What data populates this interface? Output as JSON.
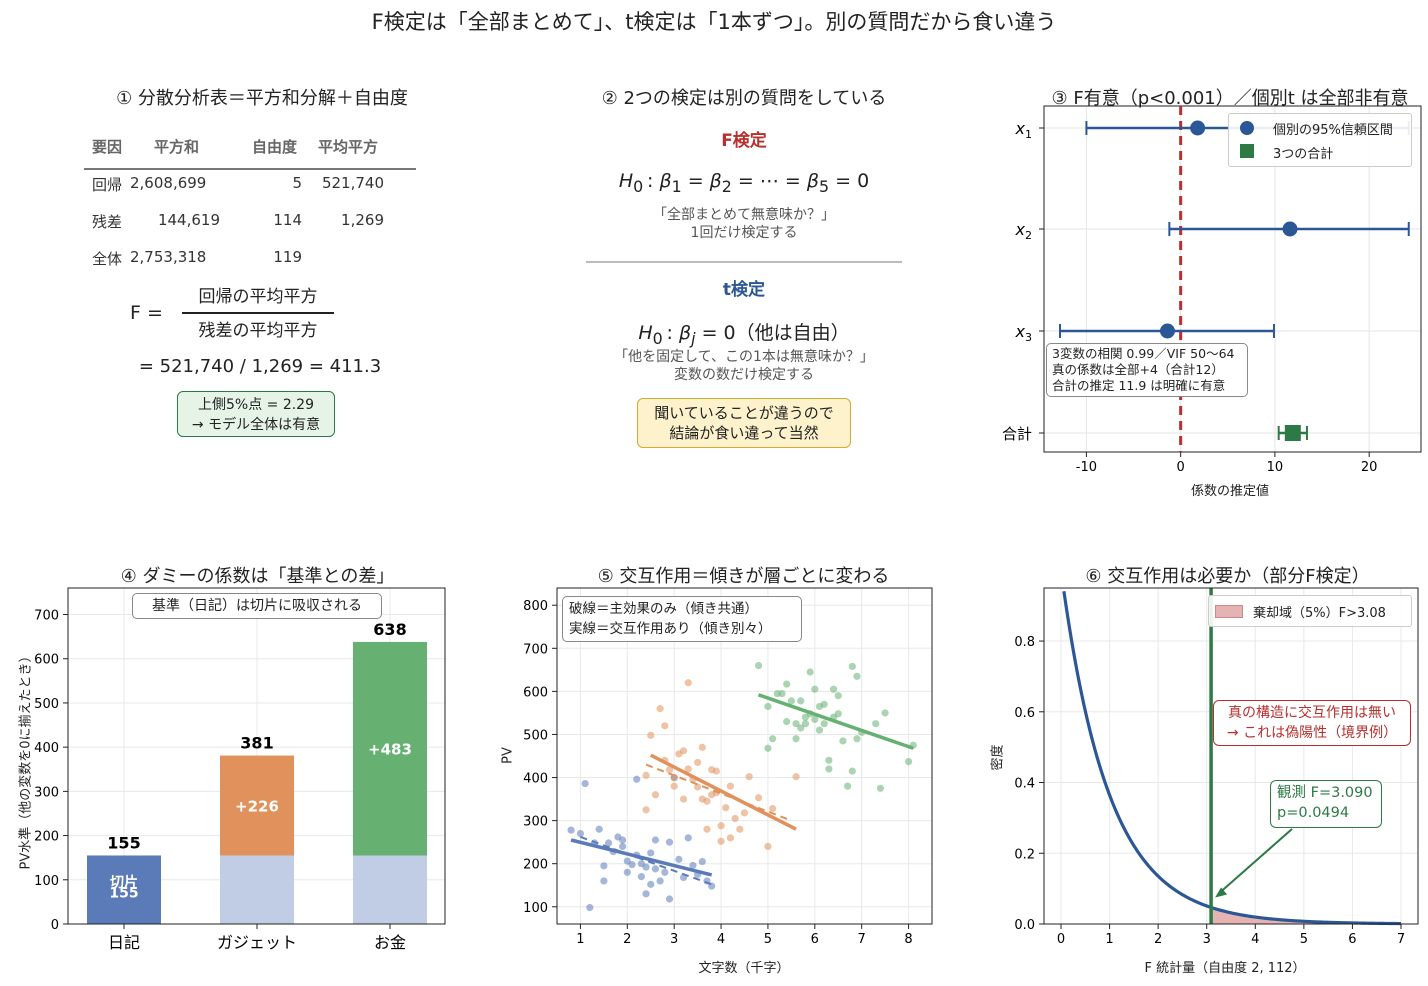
{
  "main_title": "F検定は「全部まとめて」、t検定は「1本ずつ」。別の質問だから食い違う",
  "panel1": {
    "title": "① 分散分析表＝平方和分解＋自由度",
    "headers": [
      "要因",
      "平方和",
      "自由度",
      "平均平方"
    ],
    "rows": [
      {
        "factor": "回帰",
        "ss": "2,608,699",
        "df": "5",
        "ms": "521,740"
      },
      {
        "factor": "残差",
        "ss": "144,619",
        "df": "114",
        "ms": "1,269"
      },
      {
        "factor": "全体",
        "ss": "2,753,318",
        "df": "119",
        "ms": ""
      }
    ],
    "f_label": "F =",
    "numerator": "回帰の平均平方",
    "denominator": "残差の平均平方",
    "calc": "= 521,740 / 1,269 = 411.3",
    "box_line1": "上側5%点 = 2.29",
    "box_line2": "→ モデル全体は有意"
  },
  "panel2": {
    "title": "② 2つの検定は別の質問をしている",
    "f_head": "F検定",
    "f_note1": "「全部まとめて無意味か？」",
    "f_note2": "1回だけ検定する",
    "t_head": "t検定",
    "t_paren": "（他は自由）",
    "t_note1": "「他を固定して、この1本は無意味か？」",
    "t_note2": "変数の数だけ検定する",
    "box_line1": "聞いていることが違うので",
    "box_line2": "結論が食い違って当然",
    "colors": {
      "f": "#b5302f",
      "t": "#2b5797"
    }
  },
  "panel3": {
    "title": "③ F有意（p<0.001）／個別t は全部非有意",
    "xlabel": "係数の推定値",
    "legend": [
      "個別の95%信頼区間",
      "3つの合計"
    ],
    "annotation": [
      "3変数の相関 0.99／VIF 50〜64",
      "真の係数は全部+4（合計12）",
      "合計の推定 11.9 は明確に有意"
    ],
    "total_label": "合計",
    "colors": {
      "ci": "#2b5797",
      "total": "#2d7a46",
      "zero": "#b5302f"
    }
  },
  "panel4": {
    "title": "④ ダミーの係数は「基準との差」",
    "ylabel": "PV水準（他の変数を0に揃えたとき）",
    "box": "基準（日記）は切片に吸収される",
    "intercept_label": "切片",
    "colors": {
      "base": "#5b7bb8",
      "base_light": "#c0cde4",
      "gadget": "#e0915c",
      "money": "#66b072"
    }
  },
  "panel5": {
    "title": "⑤ 交互作用＝傾きが層ごとに変わる",
    "xlabel": "文字数（千字）",
    "ylabel": "PV",
    "legend_line1": "破線＝主効果のみ（傾き共通）",
    "legend_line2": "実線＝交互作用あり（傾き別々）"
  },
  "panel6": {
    "title": "⑥ 交互作用は必要か（部分F検定）",
    "xlabel": "F 統計量（自由度 2, 112）",
    "ylabel": "密度",
    "legend": "棄却域（5%）F>3.08",
    "red_note1": "真の構造に交互作用は無い",
    "red_note2": "→ これは偽陽性（境界例）",
    "obs_line1": "観測 F=3.090",
    "obs_line2": "p=0.0494"
  },
  "chart_data": [
    {
      "type": "table",
      "title": "① 分散分析表＝平方和分解＋自由度",
      "columns": [
        "要因",
        "平方和",
        "自由度",
        "平均平方"
      ],
      "rows": [
        [
          "回帰",
          2608699,
          5,
          521740
        ],
        [
          "残差",
          144619,
          114,
          1269
        ],
        [
          "全体",
          2753318,
          119,
          null
        ]
      ],
      "F": 411.3,
      "critical_5pct": 2.29
    },
    {
      "type": "scatter",
      "title": "③ F有意（p<0.001）／個別t は全部非有意",
      "xlabel": "係数の推定値",
      "categories": [
        "x1",
        "x2",
        "x3",
        "合計"
      ],
      "estimates": [
        1.8,
        11.6,
        -1.4,
        11.9
      ],
      "ci_low": [
        -10.0,
        -1.2,
        -12.8,
        10.4
      ],
      "ci_high": [
        24.2,
        24.2,
        9.9,
        13.4
      ],
      "xlim": [
        -14.5,
        25.5
      ],
      "xticks": [
        -10,
        0,
        10,
        20
      ],
      "reference_line": 0,
      "legend_position": "top-right"
    },
    {
      "type": "bar",
      "title": "④ ダミーの係数は「基準との差」",
      "ylabel": "PV水準（他の変数を0に揃えたとき）",
      "categories": [
        "日記",
        "ガジェット",
        "お金"
      ],
      "totals": [
        155,
        381,
        638
      ],
      "series": [
        {
          "name": "切片",
          "values": [
            155,
            155,
            155
          ]
        },
        {
          "name": "差",
          "values": [
            0,
            226,
            483
          ]
        }
      ],
      "increment_labels": [
        "",
        "+226",
        "+483"
      ],
      "ylim": [
        0,
        760
      ],
      "yticks": [
        0,
        100,
        200,
        300,
        400,
        500,
        600,
        700
      ]
    },
    {
      "type": "scatter",
      "title": "⑤ 交互作用＝傾きが層ごとに変わる",
      "xlabel": "文字数（千字）",
      "ylabel": "PV",
      "xlim": [
        0.5,
        8.5
      ],
      "ylim": [
        60,
        840
      ],
      "xticks": [
        1,
        2,
        3,
        4,
        5,
        6,
        7,
        8
      ],
      "yticks": [
        100,
        200,
        300,
        400,
        500,
        600,
        700,
        800
      ],
      "series": [
        {
          "color": "#5b7bb8",
          "points": [
            [
              0.8,
              278
            ],
            [
              1.0,
              270
            ],
            [
              1.1,
              386
            ],
            [
              1.2,
              98
            ],
            [
              1.3,
              248
            ],
            [
              1.4,
              280
            ],
            [
              1.5,
              195
            ],
            [
              1.5,
              160
            ],
            [
              1.6,
              248
            ],
            [
              1.7,
              228
            ],
            [
              1.8,
              262
            ],
            [
              1.9,
              255
            ],
            [
              1.9,
              240
            ],
            [
              2.0,
              206
            ],
            [
              2.0,
              180
            ],
            [
              2.1,
              198
            ],
            [
              2.2,
              220
            ],
            [
              2.2,
              396
            ],
            [
              2.3,
              200
            ],
            [
              2.3,
              170
            ],
            [
              2.4,
              192
            ],
            [
              2.4,
              130
            ],
            [
              2.5,
              225
            ],
            [
              2.5,
              152
            ],
            [
              2.6,
              255
            ],
            [
              2.6,
              188
            ],
            [
              2.7,
              160
            ],
            [
              2.8,
              180
            ],
            [
              2.9,
              250
            ],
            [
              2.9,
              118
            ],
            [
              3.0,
              400
            ],
            [
              3.1,
              210
            ],
            [
              3.2,
              168
            ],
            [
              3.3,
              260
            ],
            [
              3.4,
              196
            ],
            [
              3.5,
              175
            ],
            [
              3.6,
              205
            ],
            [
              3.7,
              160
            ],
            [
              3.8,
              148
            ]
          ],
          "solid_fit": [
            [
              0.8,
              255
            ],
            [
              3.8,
              174
            ]
          ],
          "dashed_fit": [
            [
              1.0,
              262
            ],
            [
              3.8,
              152
            ]
          ]
        },
        {
          "color": "#e0915c",
          "points": [
            [
              2.4,
              405
            ],
            [
              2.4,
              325
            ],
            [
              2.5,
              498
            ],
            [
              2.6,
              360
            ],
            [
              2.7,
              560
            ],
            [
              2.8,
              520
            ],
            [
              2.8,
              440
            ],
            [
              2.9,
              418
            ],
            [
              3.0,
              400
            ],
            [
              3.0,
              380
            ],
            [
              3.1,
              455
            ],
            [
              3.2,
              462
            ],
            [
              3.2,
              350
            ],
            [
              3.3,
              620
            ],
            [
              3.3,
              420
            ],
            [
              3.4,
              395
            ],
            [
              3.5,
              435
            ],
            [
              3.5,
              378
            ],
            [
              3.6,
              470
            ],
            [
              3.6,
              350
            ],
            [
              3.7,
              345
            ],
            [
              3.7,
              280
            ],
            [
              3.8,
              418
            ],
            [
              3.8,
              360
            ],
            [
              3.9,
              415
            ],
            [
              3.9,
              365
            ],
            [
              4.0,
              288
            ],
            [
              4.0,
              252
            ],
            [
              4.1,
              330
            ],
            [
              4.2,
              380
            ],
            [
              4.2,
              260
            ],
            [
              4.3,
              305
            ],
            [
              4.4,
              280
            ],
            [
              4.5,
              318
            ],
            [
              4.6,
              402
            ],
            [
              4.8,
              353
            ],
            [
              5.0,
              240
            ],
            [
              5.1,
              328
            ],
            [
              5.6,
              402
            ]
          ],
          "solid_fit": [
            [
              2.5,
              452
            ],
            [
              5.6,
              280
            ]
          ],
          "dashed_fit": [
            [
              2.4,
              430
            ],
            [
              5.5,
              300
            ]
          ]
        },
        {
          "color": "#66b072",
          "points": [
            [
              4.8,
              660
            ],
            [
              5.0,
              468
            ],
            [
              5.0,
              565
            ],
            [
              5.1,
              490
            ],
            [
              5.2,
              595
            ],
            [
              5.3,
              595
            ],
            [
              5.4,
              530
            ],
            [
              5.4,
              617
            ],
            [
              5.5,
              578
            ],
            [
              5.6,
              490
            ],
            [
              5.6,
              525
            ],
            [
              5.7,
              578
            ],
            [
              5.7,
              515
            ],
            [
              5.8,
              525
            ],
            [
              5.8,
              540
            ],
            [
              5.9,
              645
            ],
            [
              5.9,
              548
            ],
            [
              6.0,
              605
            ],
            [
              6.0,
              535
            ],
            [
              6.1,
              510
            ],
            [
              6.1,
              565
            ],
            [
              6.2,
              525
            ],
            [
              6.2,
              570
            ],
            [
              6.3,
              440
            ],
            [
              6.3,
              420
            ],
            [
              6.4,
              605
            ],
            [
              6.4,
              540
            ],
            [
              6.5,
              590
            ],
            [
              6.5,
              548
            ],
            [
              6.6,
              485
            ],
            [
              6.7,
              380
            ],
            [
              6.8,
              658
            ],
            [
              6.8,
              415
            ],
            [
              6.9,
              635
            ],
            [
              6.9,
              490
            ],
            [
              7.0,
              505
            ],
            [
              7.3,
              525
            ],
            [
              7.4,
              375
            ],
            [
              7.5,
              550
            ],
            [
              8.0,
              437
            ],
            [
              8.1,
              475
            ]
          ],
          "solid_fit": [
            [
              4.8,
              592
            ],
            [
              8.1,
              468
            ]
          ],
          "dashed_fit": [
            [
              4.8,
              592
            ],
            [
              8.1,
              468
            ]
          ]
        }
      ]
    },
    {
      "type": "area",
      "title": "⑥ 交互作用は必要か（部分F検定）",
      "xlabel": "F 統計量（自由度 2, 112）",
      "ylabel": "密度",
      "df": [
        2,
        112
      ],
      "xlim": [
        -0.35,
        7.35
      ],
      "ylim": [
        0,
        0.95
      ],
      "xticks": [
        0,
        1,
        2,
        3,
        4,
        5,
        6,
        7
      ],
      "yticks": [
        0,
        0.2,
        0.4,
        0.6,
        0.8
      ],
      "critical_value": 3.08,
      "observed_F": 3.09,
      "p_value": 0.0494
    }
  ]
}
